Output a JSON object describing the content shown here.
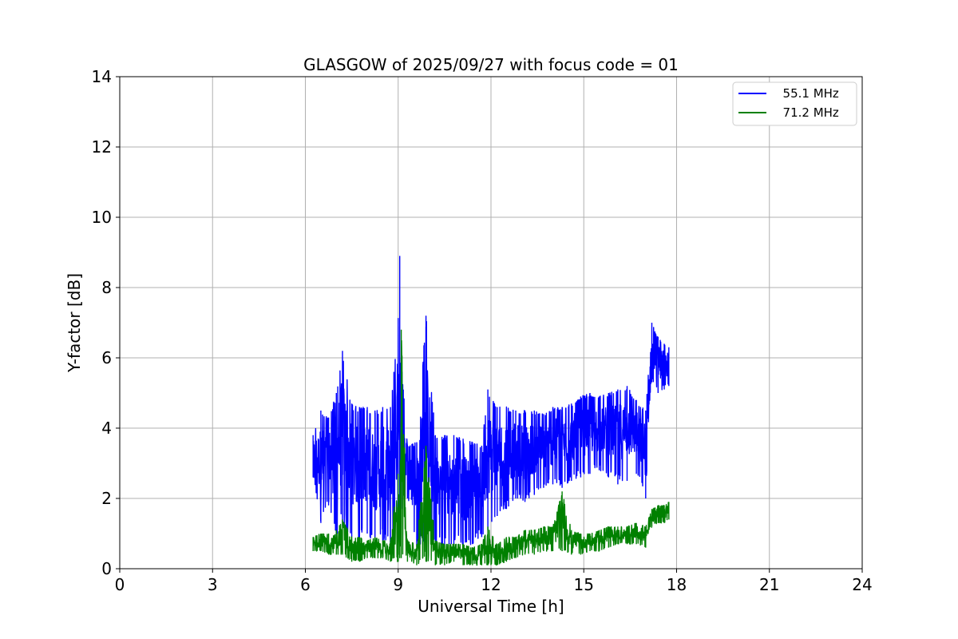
{
  "chart_data": {
    "type": "line",
    "title": "GLASGOW of 2025/09/27 with focus code = 01",
    "xlabel": "Universal Time [h]",
    "ylabel": "Y-factor [dB]",
    "xlim": [
      0,
      24
    ],
    "ylim": [
      0,
      14
    ],
    "xticks": [
      0,
      3,
      6,
      9,
      12,
      15,
      18,
      21,
      24
    ],
    "yticks": [
      0,
      2,
      4,
      6,
      8,
      10,
      12,
      14
    ],
    "grid": true,
    "legend_position": "top-right",
    "series": [
      {
        "name": "  55.1 MHz",
        "color": "#0000ff",
        "x": [
          6.25,
          6.5,
          6.75,
          7.0,
          7.2,
          7.5,
          7.75,
          8.0,
          8.25,
          8.5,
          8.75,
          9.0,
          9.05,
          9.1,
          9.3,
          9.6,
          9.9,
          10.2,
          10.5,
          10.8,
          11.1,
          11.4,
          11.7,
          11.9,
          12.2,
          12.5,
          12.8,
          13.1,
          13.4,
          13.7,
          14.0,
          14.3,
          14.6,
          14.9,
          15.2,
          15.5,
          15.8,
          16.1,
          16.4,
          16.7,
          17.0,
          17.2,
          17.4,
          17.6,
          17.75
        ],
        "y_high": [
          3.8,
          4.5,
          4.3,
          5.0,
          6.2,
          4.7,
          4.6,
          4.6,
          4.5,
          4.6,
          4.6,
          7.1,
          8.9,
          6.0,
          3.5,
          3.6,
          7.2,
          3.8,
          3.8,
          3.8,
          3.7,
          3.6,
          3.5,
          5.1,
          4.6,
          4.6,
          4.5,
          4.5,
          4.5,
          4.4,
          4.6,
          4.6,
          4.7,
          4.9,
          5.0,
          4.9,
          5.0,
          5.1,
          5.2,
          4.8,
          4.5,
          7.0,
          6.6,
          6.4,
          6.3
        ],
        "y_low": [
          2.6,
          1.3,
          1.8,
          0.9,
          1.2,
          0.9,
          0.8,
          1.0,
          0.7,
          0.8,
          0.6,
          0.7,
          1.4,
          1.7,
          2.0,
          0.6,
          0.7,
          0.6,
          0.6,
          0.7,
          0.6,
          0.7,
          0.9,
          1.1,
          1.5,
          1.7,
          2.0,
          1.9,
          2.1,
          2.3,
          2.4,
          2.3,
          2.5,
          2.6,
          2.7,
          2.8,
          2.6,
          2.4,
          2.5,
          2.7,
          2.0,
          5.3,
          5.0,
          5.1,
          5.2
        ]
      },
      {
        "name": "  71.2 MHz",
        "color": "#008000",
        "x": [
          6.25,
          6.5,
          6.75,
          7.0,
          7.2,
          7.5,
          7.75,
          8.0,
          8.25,
          8.5,
          8.75,
          9.0,
          9.05,
          9.1,
          9.3,
          9.6,
          9.9,
          10.2,
          10.5,
          10.8,
          11.1,
          11.4,
          11.7,
          11.9,
          12.2,
          12.5,
          12.8,
          13.1,
          13.4,
          13.7,
          14.0,
          14.3,
          14.6,
          14.9,
          15.2,
          15.5,
          15.8,
          16.1,
          16.4,
          16.7,
          17.0,
          17.2,
          17.4,
          17.6,
          17.75
        ],
        "y_high": [
          0.9,
          1.0,
          1.0,
          1.1,
          1.4,
          0.9,
          0.9,
          0.8,
          0.9,
          0.8,
          0.8,
          2.7,
          1.2,
          6.8,
          0.8,
          0.7,
          3.5,
          0.8,
          0.7,
          0.7,
          0.7,
          0.6,
          0.7,
          1.2,
          0.7,
          0.9,
          0.9,
          1.1,
          1.1,
          1.2,
          1.2,
          2.2,
          1.1,
          1.0,
          1.0,
          1.1,
          1.2,
          1.2,
          1.2,
          1.3,
          1.2,
          1.7,
          1.8,
          1.8,
          1.9
        ],
        "y_low": [
          0.5,
          0.5,
          0.4,
          0.4,
          0.4,
          0.2,
          0.2,
          0.3,
          0.3,
          0.3,
          0.2,
          0.2,
          0.3,
          0.3,
          0.2,
          0.1,
          0.2,
          0.1,
          0.1,
          0.2,
          0.1,
          0.1,
          0.1,
          0.1,
          0.1,
          0.2,
          0.3,
          0.4,
          0.4,
          0.5,
          0.5,
          0.5,
          0.4,
          0.4,
          0.5,
          0.5,
          0.6,
          0.7,
          0.7,
          0.7,
          0.6,
          1.2,
          1.3,
          1.3,
          1.4
        ]
      }
    ]
  }
}
